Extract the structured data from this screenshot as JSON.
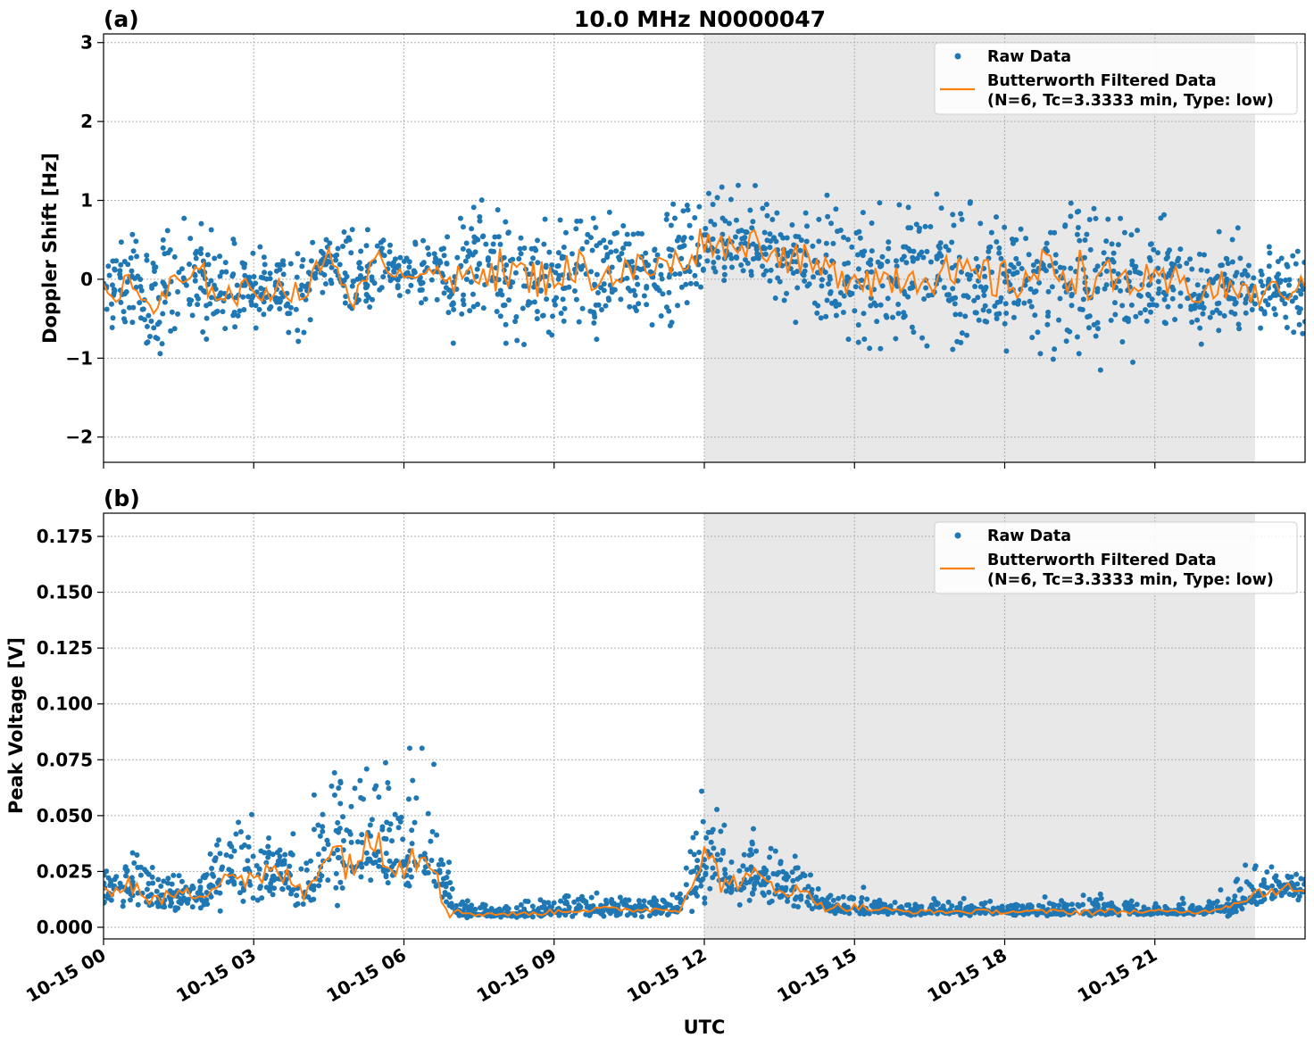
{
  "title": "10.0 MHz N0000047",
  "legend": {
    "raw": "Raw Data",
    "filtered_1": "Butterworth Filtered Data",
    "filtered_2": "(N=6, Tc=3.3333 min, Type: low)",
    "placement": "top-right"
  },
  "colors": {
    "raw": "#1f77b4",
    "filtered": "#ff7f0e",
    "shade": "#e8e8e8",
    "grid": "#b0b0b0"
  },
  "xlabel": "UTC",
  "xticks": [
    "10-15 00",
    "10-15 03",
    "10-15 06",
    "10-15 09",
    "10-15 12",
    "10-15 15",
    "10-15 18",
    "10-15 21"
  ],
  "xtick_hours": [
    0,
    3,
    6,
    9,
    12,
    15,
    18,
    21
  ],
  "xlim_hours": [
    0,
    24
  ],
  "shaded_hours": [
    12,
    23
  ],
  "chart_data": [
    {
      "panel": "(a)",
      "type": "scatter+line",
      "ylabel": "Doppler Shift [Hz]",
      "ylim": [
        -2.32,
        3.11
      ],
      "yticks": [
        -2,
        -1,
        0,
        1,
        2,
        3
      ],
      "ytick_labels": [
        "−2",
        "−1",
        "0",
        "1",
        "2",
        "3"
      ],
      "grid": true,
      "x_hours": [
        0,
        0.5,
        1,
        1.5,
        2,
        2.5,
        3,
        3.5,
        4,
        4.5,
        5,
        5.5,
        6,
        6.5,
        7,
        7.5,
        8,
        8.5,
        9,
        9.5,
        10,
        10.5,
        11,
        11.5,
        12,
        12.5,
        13,
        13.5,
        14,
        14.5,
        15,
        15.5,
        16,
        16.5,
        17,
        17.5,
        18,
        18.5,
        19,
        19.5,
        20,
        20.5,
        21,
        21.5,
        22,
        22.5,
        23,
        23.5,
        24
      ],
      "filtered": [
        -0.15,
        -0.1,
        -0.35,
        -0.05,
        0.0,
        -0.2,
        -0.15,
        -0.1,
        -0.2,
        0.35,
        -0.3,
        0.25,
        0.05,
        0.15,
        -0.1,
        0.2,
        0.1,
        0.0,
        0.05,
        0.15,
        0.05,
        0.1,
        0.15,
        0.2,
        0.5,
        0.4,
        0.5,
        0.3,
        0.2,
        0.05,
        0.1,
        0.0,
        0.05,
        0.1,
        0.0,
        0.05,
        -0.05,
        0.05,
        0.15,
        0.1,
        -0.05,
        0.0,
        -0.1,
        -0.05,
        -0.15,
        -0.1,
        -0.2,
        -0.15,
        -0.1
      ],
      "raw_low": [
        -0.8,
        -0.8,
        -1.3,
        -0.8,
        -0.8,
        -0.8,
        -0.7,
        -0.6,
        -0.9,
        -0.1,
        -0.7,
        -0.3,
        -0.3,
        -0.3,
        -1.0,
        -1.1,
        -1.2,
        -1.0,
        -0.9,
        -1.0,
        -0.9,
        -0.9,
        -0.9,
        -0.8,
        -0.2,
        -0.3,
        -0.1,
        -0.6,
        -0.9,
        -1.0,
        -1.1,
        -1.1,
        -1.1,
        -1.1,
        -1.1,
        -1.1,
        -1.2,
        -1.2,
        -1.2,
        -1.2,
        -1.2,
        -1.1,
        -1.0,
        -1.0,
        -0.9,
        -0.8,
        -0.8,
        -0.7,
        -0.7
      ],
      "raw_high": [
        0.6,
        0.7,
        0.6,
        0.8,
        0.9,
        0.7,
        0.6,
        0.5,
        0.5,
        0.7,
        0.7,
        0.6,
        0.5,
        0.5,
        1.0,
        1.2,
        1.2,
        1.1,
        1.0,
        1.1,
        1.0,
        1.1,
        1.0,
        1.1,
        1.2,
        1.3,
        1.4,
        1.0,
        1.1,
        1.1,
        1.1,
        1.1,
        1.1,
        1.2,
        1.1,
        1.1,
        1.2,
        1.2,
        1.3,
        1.3,
        1.2,
        1.0,
        0.9,
        0.9,
        0.9,
        0.7,
        0.6,
        0.5,
        0.5
      ]
    },
    {
      "panel": "(b)",
      "type": "scatter+line",
      "ylabel": "Peak Voltage [V]",
      "ylim": [
        -0.0052,
        0.1854
      ],
      "yticks": [
        0,
        0.025,
        0.05,
        0.075,
        0.1,
        0.125,
        0.15,
        0.175
      ],
      "ytick_labels": [
        "0.000",
        "0.025",
        "0.050",
        "0.075",
        "0.100",
        "0.125",
        "0.150",
        "0.175"
      ],
      "grid": true,
      "x_hours": [
        0,
        0.5,
        1,
        1.5,
        2,
        2.5,
        3,
        3.5,
        4,
        4.5,
        5,
        5.5,
        6,
        6.5,
        7,
        7.5,
        8,
        8.5,
        9,
        9.5,
        10,
        10.5,
        11,
        11.5,
        12,
        12.5,
        13,
        13.5,
        14,
        14.5,
        15,
        15.5,
        16,
        16.5,
        17,
        17.5,
        18,
        18.5,
        19,
        19.5,
        20,
        20.5,
        21,
        21.5,
        22,
        22.5,
        23,
        23.5,
        24
      ],
      "filtered": [
        0.015,
        0.02,
        0.012,
        0.015,
        0.015,
        0.025,
        0.02,
        0.025,
        0.015,
        0.035,
        0.03,
        0.04,
        0.03,
        0.035,
        0.007,
        0.006,
        0.006,
        0.006,
        0.007,
        0.008,
        0.008,
        0.008,
        0.008,
        0.008,
        0.03,
        0.02,
        0.022,
        0.018,
        0.015,
        0.009,
        0.009,
        0.008,
        0.007,
        0.007,
        0.007,
        0.007,
        0.007,
        0.007,
        0.007,
        0.007,
        0.007,
        0.007,
        0.007,
        0.007,
        0.007,
        0.01,
        0.015,
        0.018,
        0.016
      ],
      "raw_low": [
        0.006,
        0.006,
        0.006,
        0.006,
        0.006,
        0.006,
        0.007,
        0.007,
        0.007,
        0.008,
        0.008,
        0.008,
        0.008,
        0.008,
        0.004,
        0.004,
        0.004,
        0.004,
        0.004,
        0.004,
        0.004,
        0.004,
        0.004,
        0.004,
        0.01,
        0.008,
        0.008,
        0.007,
        0.006,
        0.005,
        0.005,
        0.005,
        0.005,
        0.005,
        0.005,
        0.005,
        0.005,
        0.005,
        0.005,
        0.005,
        0.005,
        0.005,
        0.005,
        0.005,
        0.005,
        0.005,
        0.007,
        0.007,
        0.007
      ],
      "raw_high": [
        0.03,
        0.04,
        0.03,
        0.03,
        0.03,
        0.05,
        0.06,
        0.05,
        0.04,
        0.09,
        0.08,
        0.1,
        0.08,
        0.09,
        0.015,
        0.012,
        0.012,
        0.013,
        0.015,
        0.02,
        0.015,
        0.015,
        0.015,
        0.015,
        0.08,
        0.04,
        0.05,
        0.035,
        0.03,
        0.02,
        0.02,
        0.015,
        0.013,
        0.013,
        0.013,
        0.013,
        0.013,
        0.013,
        0.015,
        0.018,
        0.015,
        0.013,
        0.013,
        0.013,
        0.013,
        0.02,
        0.035,
        0.03,
        0.03
      ]
    }
  ]
}
